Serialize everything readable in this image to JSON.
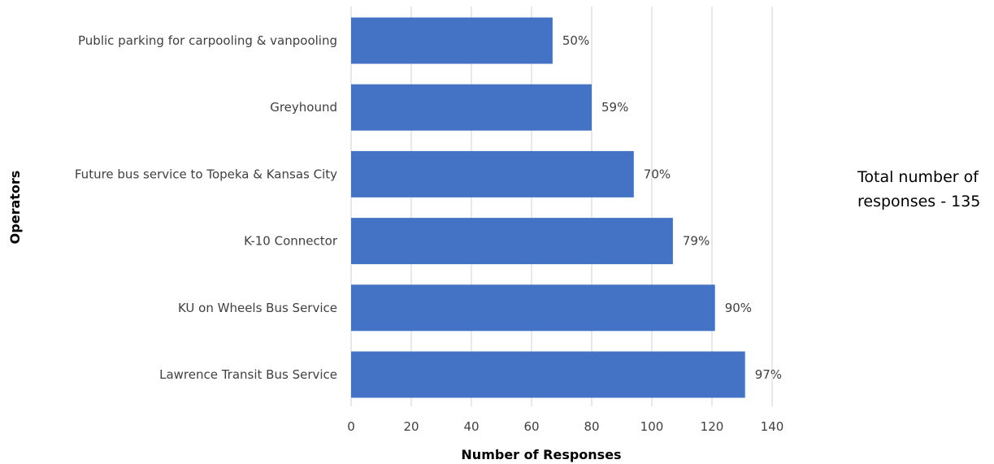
{
  "chart_data": {
    "type": "bar",
    "orientation": "horizontal",
    "categories": [
      "Public parking for carpooling & vanpooling",
      "Greyhound",
      "Future bus service to Topeka & Kansas City",
      "K-10 Connector",
      "KU on Wheels Bus Service",
      "Lawrence Transit Bus Service"
    ],
    "values": [
      67,
      80,
      94,
      107,
      121,
      131
    ],
    "data_labels": [
      "50%",
      "59%",
      "70%",
      "79%",
      "90%",
      "97%"
    ],
    "xlabel": "Number of Responses",
    "ylabel": "Operators",
    "xlim": [
      0,
      140
    ],
    "xticks": [
      "0",
      "20",
      "40",
      "60",
      "80",
      "100",
      "120",
      "140"
    ],
    "grid": "vertical",
    "bar_color": "#4472C4"
  },
  "annotation": {
    "text": "Total number of responses - 135"
  }
}
